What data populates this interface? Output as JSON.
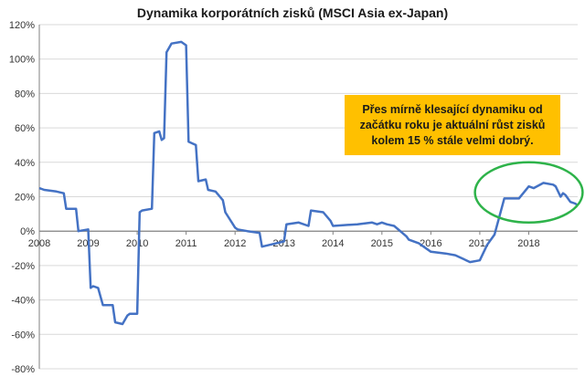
{
  "chart_data": {
    "type": "line",
    "title": "Dynamika korporátních zisků (MSCI Asia ex-Japan)",
    "xlabel": "",
    "ylabel": "",
    "xlim": [
      2008,
      2019
    ],
    "ylim": [
      -80,
      120
    ],
    "x_ticks": [
      "2008",
      "2009",
      "2010",
      "2011",
      "2012",
      "2013",
      "2014",
      "2015",
      "2016",
      "2017",
      "2018"
    ],
    "y_ticks": [
      "120%",
      "100%",
      "80%",
      "60%",
      "40%",
      "20%",
      "0%",
      "-20%",
      "-40%",
      "-60%",
      "-80%"
    ],
    "y_tick_values": [
      120,
      100,
      80,
      60,
      40,
      20,
      0,
      -20,
      -40,
      -60,
      -80
    ],
    "grid": "horizontal",
    "line_color": "#4472C4",
    "series": [
      {
        "name": "",
        "x": [
          2008.0,
          2008.1,
          2008.35,
          2008.5,
          2008.55,
          2008.75,
          2008.8,
          2009.0,
          2009.05,
          2009.1,
          2009.2,
          2009.3,
          2009.5,
          2009.55,
          2009.7,
          2009.8,
          2009.85,
          2010.0,
          2010.05,
          2010.1,
          2010.3,
          2010.35,
          2010.45,
          2010.5,
          2010.55,
          2010.6,
          2010.7,
          2010.9,
          2011.0,
          2011.05,
          2011.2,
          2011.25,
          2011.4,
          2011.45,
          2011.6,
          2011.75,
          2011.8,
          2012.0,
          2012.05,
          2012.25,
          2012.5,
          2012.55,
          2012.7,
          2013.0,
          2013.05,
          2013.3,
          2013.5,
          2013.55,
          2013.8,
          2013.95,
          2014.0,
          2014.5,
          2014.8,
          2014.9,
          2015.0,
          2015.1,
          2015.25,
          2015.5,
          2015.55,
          2015.75,
          2016.0,
          2016.3,
          2016.5,
          2016.8,
          2017.0,
          2017.15,
          2017.3,
          2017.5,
          2017.55,
          2017.8,
          2018.0,
          2018.1,
          2018.3,
          2018.5,
          2018.55,
          2018.65,
          2018.7,
          2018.75,
          2018.85,
          2018.95,
          2019.0
        ],
        "values": [
          25,
          24,
          23,
          22,
          13,
          13,
          0,
          1,
          -33,
          -32,
          -33,
          -43,
          -43,
          -53,
          -54,
          -49,
          -48,
          -48,
          11,
          12,
          13,
          57,
          58,
          53,
          54,
          104,
          109,
          110,
          108,
          52,
          50,
          29,
          30,
          24,
          23,
          18,
          11,
          2,
          1,
          0,
          -1,
          -9,
          -8,
          -6,
          4,
          5,
          3,
          12,
          11,
          6,
          3,
          4,
          5,
          4,
          5,
          4,
          3,
          -3,
          -5,
          -7,
          -12,
          -13,
          -14,
          -18,
          -17,
          -8,
          -2,
          19,
          19,
          19,
          26,
          25,
          28,
          27,
          26,
          20,
          22,
          21,
          17,
          16,
          15
        ]
      }
    ],
    "annotations": [
      "Přes mírně klesající dynamiku od\nzačátku roku je aktuální růst zisků\nkolem 15 % stále velmi dobrý."
    ],
    "highlight": {
      "shape": "ellipse",
      "color": "#2EB34A",
      "region_x": [
        2016.9,
        2019.1
      ],
      "region_y": [
        5,
        40
      ]
    }
  }
}
